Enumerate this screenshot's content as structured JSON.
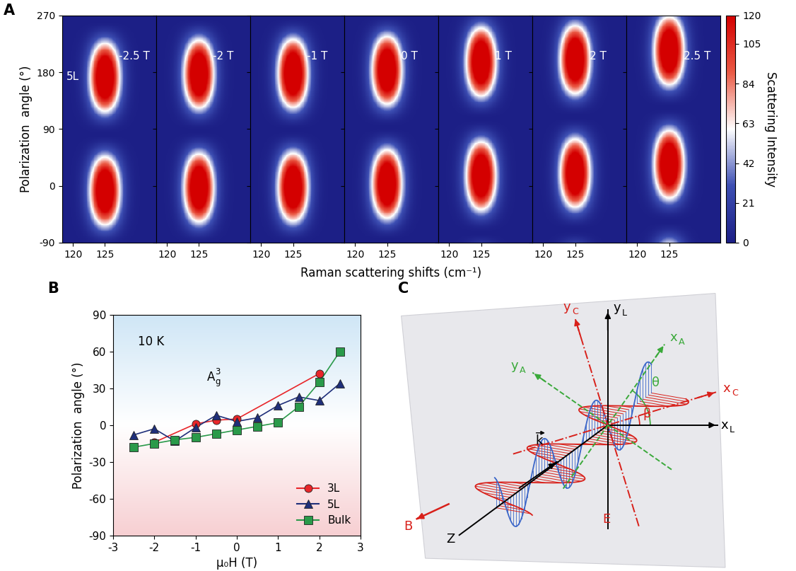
{
  "panel_labels": [
    "A",
    "B",
    "C"
  ],
  "chart_data": [
    {
      "type": "heatmap",
      "xlabel": "Raman scattering shifts (cm⁻¹)",
      "ylabel": "Polarization  angle (°)",
      "sample": "5L",
      "xlim": [
        118.3,
        133.0
      ],
      "xticks": [
        120,
        125
      ],
      "ylim": [
        -90,
        270
      ],
      "yticks": [
        -90,
        0,
        90,
        180,
        270
      ],
      "panels": [
        {
          "label": "-2.5 T",
          "peak_angle": -8
        },
        {
          "label": "-2 T",
          "peak_angle": -3
        },
        {
          "label": "-1 T",
          "peak_angle": -2
        },
        {
          "label": "0 T",
          "peak_angle": 3
        },
        {
          "label": "1 T",
          "peak_angle": 16
        },
        {
          "label": "2 T",
          "peak_angle": 20
        },
        {
          "label": "2.5 T",
          "peak_angle": 34
        }
      ],
      "peak_shift": 125,
      "peak_width": 1.6,
      "peak_intensity": 170,
      "colorbar": {
        "label": "Scattering Intensity",
        "range": [
          0,
          120
        ],
        "ticks": [
          0,
          21,
          42,
          63,
          84,
          105,
          120
        ]
      }
    },
    {
      "type": "line",
      "xlabel": "μ₀H (T)",
      "ylabel": "Polarization  angle (°)",
      "xlim": [
        -3,
        3
      ],
      "xticks": [
        -3,
        -2,
        -1,
        0,
        1,
        2,
        3
      ],
      "ylim": [
        -90,
        90
      ],
      "yticks": [
        -90,
        -60,
        -30,
        0,
        30,
        60,
        90
      ],
      "legend": "lower right",
      "annotations": [
        {
          "text": "10 K"
        },
        {
          "text": "A",
          "sub": "g",
          "sup": "3"
        }
      ],
      "series": [
        {
          "name": "3L",
          "color": "#e8262a",
          "marker": "circle",
          "x": [
            -2,
            -1,
            -0.5,
            0,
            2
          ],
          "values": [
            -14,
            1,
            4,
            5,
            42
          ]
        },
        {
          "name": "5L",
          "color": "#1f2f7a",
          "marker": "triangle",
          "x": [
            -2.5,
            -2,
            -1.5,
            -1,
            -0.5,
            0,
            0.5,
            1,
            1.5,
            2,
            2.5
          ],
          "values": [
            -8,
            -3,
            -13,
            -2,
            8,
            3,
            6,
            16,
            23,
            20,
            34
          ]
        },
        {
          "name": "Bulk",
          "color": "#2a9a4a",
          "marker": "square",
          "x": [
            -2.5,
            -2,
            -1.5,
            -1,
            -0.5,
            0,
            0.5,
            1,
            1.5,
            2,
            2.5
          ],
          "values": [
            -18,
            -15,
            -12,
            -10,
            -7,
            -4,
            -1,
            2,
            15,
            35,
            60
          ]
        }
      ]
    }
  ],
  "diagram": {
    "labels": {
      "xL": {
        "text": "x",
        "sub": "L"
      },
      "yL": {
        "text": "y",
        "sub": "L"
      },
      "xC": {
        "text": "x",
        "sub": "C"
      },
      "yC": {
        "text": "y",
        "sub": "C"
      },
      "xA": {
        "text": "x",
        "sub": "A"
      },
      "yA": {
        "text": "y",
        "sub": "A"
      },
      "Z": {
        "text": "Z"
      },
      "B": {
        "text": "B"
      },
      "k": {
        "text": "k"
      },
      "E": {
        "text": "E"
      },
      "theta": {
        "text": "θ"
      },
      "beta": {
        "text": "β"
      }
    }
  }
}
